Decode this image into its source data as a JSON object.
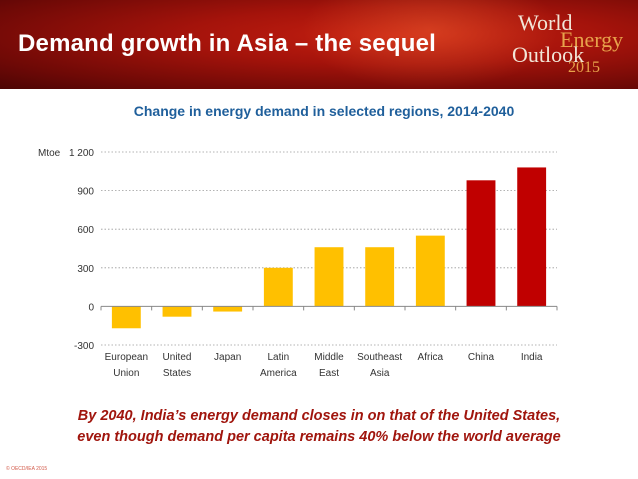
{
  "header": {
    "title": "Demand growth in Asia – the sequel",
    "logo_line1": "World",
    "logo_line2": "Energy",
    "logo_line3": "Outlook",
    "logo_line4": "2015"
  },
  "chart_data": {
    "type": "bar",
    "title": "Change in energy demand in selected regions, 2014-2040",
    "ylabel": "Mtoe",
    "xlabel": "",
    "ylim": [
      -300,
      1200
    ],
    "yticks": [
      -300,
      0,
      300,
      600,
      900,
      1200
    ],
    "ytick_labels": [
      "-300",
      "0",
      "300",
      "600",
      "900",
      "1 200"
    ],
    "grid": true,
    "categories": [
      [
        "European",
        "Union"
      ],
      [
        "United",
        "States"
      ],
      [
        "Japan"
      ],
      [
        "Latin",
        "America"
      ],
      [
        "Middle",
        "East"
      ],
      [
        "Southeast",
        "Asia"
      ],
      [
        "Africa"
      ],
      [
        "China"
      ],
      [
        "India"
      ]
    ],
    "values": [
      -170,
      -80,
      -40,
      300,
      460,
      460,
      550,
      980,
      1080
    ],
    "colors": [
      "#ffc000",
      "#ffc000",
      "#ffc000",
      "#ffc000",
      "#ffc000",
      "#ffc000",
      "#ffc000",
      "#c00000",
      "#c00000"
    ]
  },
  "subtitle": {
    "line1": "By 2040, India’s energy demand closes in on that of the United States,",
    "line2": "even though demand per capita remains 40% below the world average"
  },
  "footer": {
    "copyright": "© OECD/IEA 2015"
  }
}
